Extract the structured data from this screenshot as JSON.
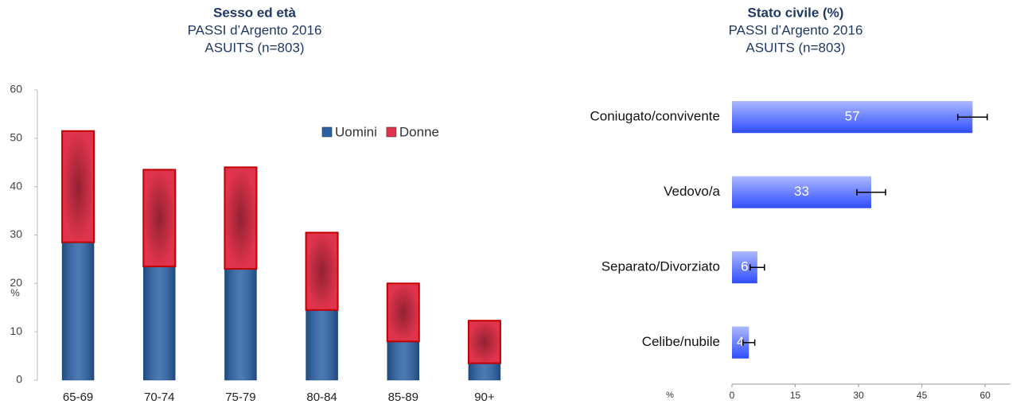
{
  "chart_data": [
    {
      "type": "stacked_bar",
      "title": "Sesso ed età",
      "subtitle": [
        "PASSI d’Argento 2016",
        "ASUITS (n=803)"
      ],
      "y_label": "%",
      "categories": [
        "65-69",
        "70-74",
        "75-79",
        "80-84",
        "85-89",
        "90+"
      ],
      "series": [
        {
          "name": "Uomini",
          "color": "#2a62a8",
          "values": [
            28.5,
            23.5,
            23,
            14.5,
            8,
            3.5
          ]
        },
        {
          "name": "Donne",
          "color": "#e0344c",
          "values": [
            23,
            20,
            21,
            16,
            12,
            8.8
          ]
        }
      ],
      "ylim": [
        0,
        60
      ],
      "yticks": [
        0,
        10,
        20,
        30,
        40,
        50,
        60
      ],
      "legend": "top-right"
    },
    {
      "type": "hbar",
      "title": "Stato civile (%)",
      "subtitle": [
        "PASSI d’Argento 2016",
        "ASUITS (n=803)"
      ],
      "x_label": "%",
      "categories": [
        "Coniugato/convivente",
        "Vedovo/a",
        "Separato/Divorziato",
        "Celibe/nubile"
      ],
      "values": [
        57,
        33,
        6,
        4
      ],
      "errors": [
        3.5,
        3.4,
        1.7,
        1.4
      ],
      "color": "#2f4dff",
      "xlim": [
        0,
        66
      ],
      "xticks": [
        0,
        15,
        30,
        45,
        60
      ]
    }
  ]
}
